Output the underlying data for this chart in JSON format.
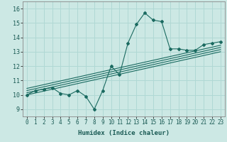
{
  "xlabel": "Humidex (Indice chaleur)",
  "ylabel": "",
  "background_color": "#cce8e4",
  "grid_color": "#b0d8d4",
  "line_color": "#1a6a60",
  "xlim": [
    -0.5,
    23.5
  ],
  "ylim": [
    8.5,
    16.5
  ],
  "xticks": [
    0,
    1,
    2,
    3,
    4,
    5,
    6,
    7,
    8,
    9,
    10,
    11,
    12,
    13,
    14,
    15,
    16,
    17,
    18,
    19,
    20,
    21,
    22,
    23
  ],
  "yticks": [
    9,
    10,
    11,
    12,
    13,
    14,
    15,
    16
  ],
  "data_x": [
    0,
    1,
    2,
    3,
    4,
    5,
    6,
    7,
    8,
    9,
    10,
    11,
    12,
    13,
    14,
    15,
    16,
    17,
    18,
    19,
    20,
    21,
    22,
    23
  ],
  "data_y": [
    10.0,
    10.3,
    10.4,
    10.5,
    10.1,
    10.0,
    10.3,
    9.9,
    9.0,
    10.3,
    12.0,
    11.4,
    13.6,
    14.9,
    15.7,
    15.2,
    15.1,
    13.2,
    13.2,
    13.1,
    13.1,
    13.5,
    13.6,
    13.7
  ],
  "reg_lines": [
    {
      "x0": 0,
      "y0": 10.0,
      "x1": 23,
      "y1": 13.0
    },
    {
      "x0": 0,
      "y0": 10.15,
      "x1": 23,
      "y1": 13.15
    },
    {
      "x0": 0,
      "y0": 10.3,
      "x1": 23,
      "y1": 13.3
    },
    {
      "x0": 0,
      "y0": 10.45,
      "x1": 23,
      "y1": 13.45
    }
  ],
  "tick_fontsize": 5.5,
  "xlabel_fontsize": 6.5
}
